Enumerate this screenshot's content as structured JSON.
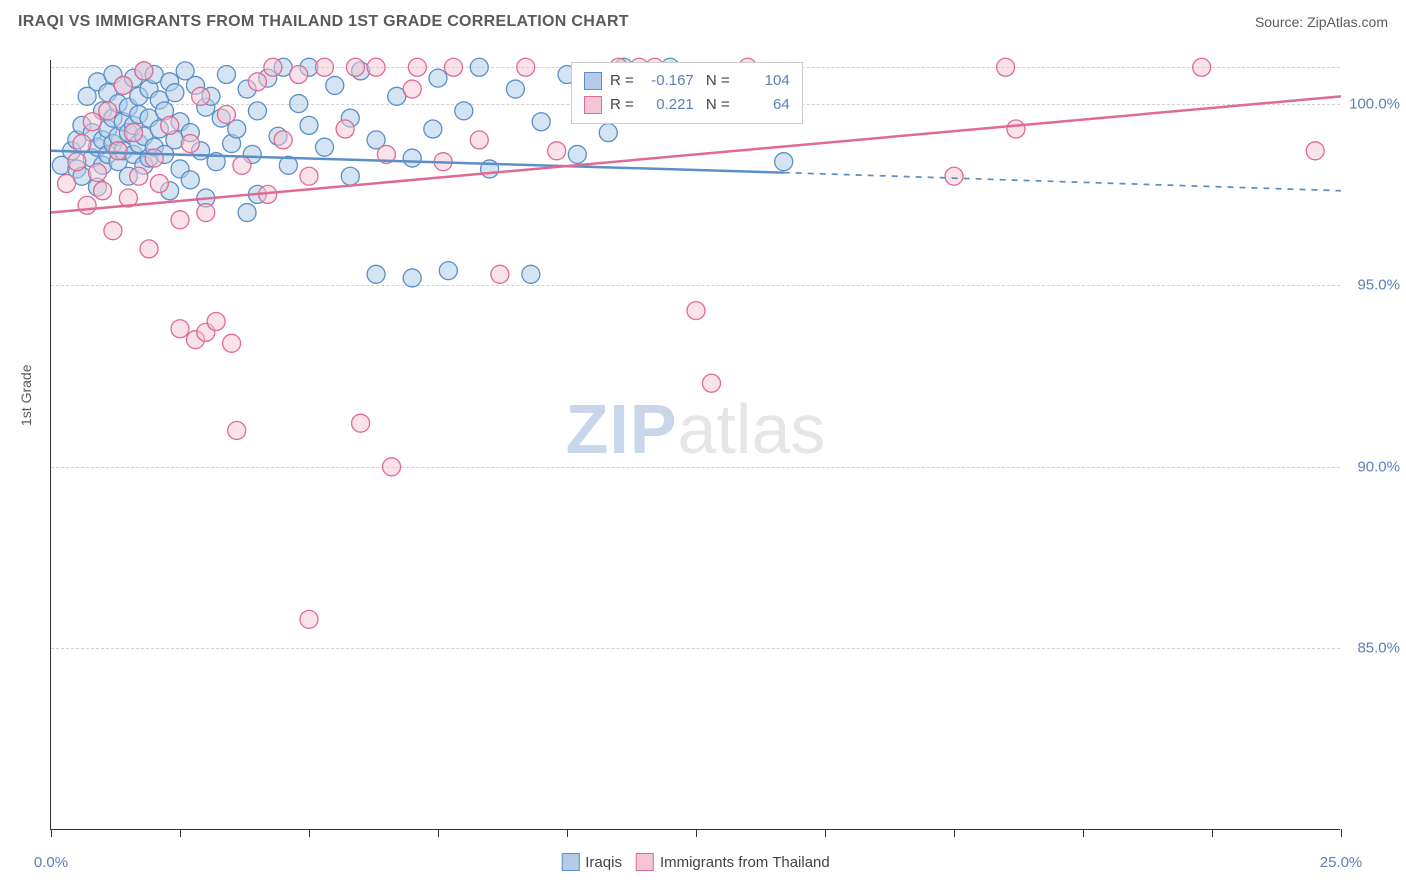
{
  "header": {
    "title": "IRAQI VS IMMIGRANTS FROM THAILAND 1ST GRADE CORRELATION CHART",
    "source_label": "Source:",
    "source_name": "ZipAtlas.com"
  },
  "y_axis_label": "1st Grade",
  "watermark": {
    "part1": "ZIP",
    "part2": "atlas"
  },
  "chart": {
    "type": "scatter",
    "xlim": [
      0,
      25
    ],
    "ylim": [
      80,
      101.2
    ],
    "xtick_positions": [
      0,
      2.5,
      5,
      7.5,
      10,
      12.5,
      15,
      17.5,
      20,
      22.5,
      25
    ],
    "xtick_labels": {
      "0": "0.0%",
      "25": "25.0%"
    },
    "ytick_positions": [
      85,
      90,
      95,
      100
    ],
    "ytick_labels": {
      "85": "85.0%",
      "90": "90.0%",
      "95": "95.0%",
      "100": "100.0%"
    },
    "grid_color": "#d0d0d0",
    "background_color": "#ffffff",
    "marker_radius": 9,
    "marker_stroke_width": 1.3,
    "line_width": 2.5,
    "series": [
      {
        "name": "Iraqis",
        "fill": "#b3cde8",
        "stroke": "#5b8fc7",
        "fill_opacity": 0.55,
        "R": "-0.167",
        "N": "104",
        "trend": {
          "solid_from": [
            0,
            98.7
          ],
          "solid_to": [
            14.2,
            98.1
          ],
          "dash_to": [
            25,
            97.6
          ]
        },
        "points": [
          [
            0.2,
            98.3
          ],
          [
            0.4,
            98.7
          ],
          [
            0.5,
            99.0
          ],
          [
            0.5,
            98.2
          ],
          [
            0.6,
            99.4
          ],
          [
            0.6,
            98.0
          ],
          [
            0.7,
            100.2
          ],
          [
            0.8,
            99.2
          ],
          [
            0.8,
            98.5
          ],
          [
            0.9,
            100.6
          ],
          [
            0.9,
            98.8
          ],
          [
            0.9,
            97.7
          ],
          [
            1.0,
            99.8
          ],
          [
            1.0,
            99.0
          ],
          [
            1.0,
            98.3
          ],
          [
            1.1,
            100.3
          ],
          [
            1.1,
            99.3
          ],
          [
            1.1,
            98.6
          ],
          [
            1.2,
            100.8
          ],
          [
            1.2,
            99.6
          ],
          [
            1.2,
            98.9
          ],
          [
            1.3,
            100.0
          ],
          [
            1.3,
            99.1
          ],
          [
            1.3,
            98.4
          ],
          [
            1.4,
            100.5
          ],
          [
            1.4,
            99.5
          ],
          [
            1.4,
            98.7
          ],
          [
            1.5,
            99.9
          ],
          [
            1.5,
            99.2
          ],
          [
            1.5,
            98.0
          ],
          [
            1.6,
            100.7
          ],
          [
            1.6,
            99.4
          ],
          [
            1.6,
            98.6
          ],
          [
            1.7,
            100.2
          ],
          [
            1.7,
            99.7
          ],
          [
            1.7,
            98.9
          ],
          [
            1.8,
            100.9
          ],
          [
            1.8,
            99.1
          ],
          [
            1.8,
            98.3
          ],
          [
            1.9,
            98.5
          ],
          [
            1.9,
            100.4
          ],
          [
            1.9,
            99.6
          ],
          [
            2.0,
            100.8
          ],
          [
            2.0,
            98.8
          ],
          [
            2.1,
            99.3
          ],
          [
            2.1,
            100.1
          ],
          [
            2.2,
            98.6
          ],
          [
            2.2,
            99.8
          ],
          [
            2.3,
            100.6
          ],
          [
            2.3,
            97.6
          ],
          [
            2.4,
            99.0
          ],
          [
            2.4,
            100.3
          ],
          [
            2.5,
            98.2
          ],
          [
            2.5,
            99.5
          ],
          [
            2.6,
            100.9
          ],
          [
            2.7,
            99.2
          ],
          [
            2.7,
            97.9
          ],
          [
            2.8,
            100.5
          ],
          [
            2.9,
            98.7
          ],
          [
            3.0,
            99.9
          ],
          [
            3.0,
            97.4
          ],
          [
            3.1,
            100.2
          ],
          [
            3.2,
            98.4
          ],
          [
            3.3,
            99.6
          ],
          [
            3.4,
            100.8
          ],
          [
            3.5,
            98.9
          ],
          [
            3.6,
            99.3
          ],
          [
            3.8,
            100.4
          ],
          [
            3.8,
            97.0
          ],
          [
            3.9,
            98.6
          ],
          [
            4.0,
            99.8
          ],
          [
            4.0,
            97.5
          ],
          [
            4.2,
            100.7
          ],
          [
            4.4,
            99.1
          ],
          [
            4.6,
            98.3
          ],
          [
            4.8,
            100.0
          ],
          [
            5.0,
            99.4
          ],
          [
            5.0,
            101.0
          ],
          [
            5.3,
            98.8
          ],
          [
            5.5,
            100.5
          ],
          [
            5.8,
            99.6
          ],
          [
            5.8,
            98.0
          ],
          [
            6.0,
            100.9
          ],
          [
            6.3,
            99.0
          ],
          [
            6.3,
            95.3
          ],
          [
            6.7,
            100.2
          ],
          [
            7.0,
            98.5
          ],
          [
            7.0,
            95.2
          ],
          [
            7.4,
            99.3
          ],
          [
            7.5,
            100.7
          ],
          [
            7.7,
            95.4
          ],
          [
            8.0,
            99.8
          ],
          [
            8.3,
            101.0
          ],
          [
            8.5,
            98.2
          ],
          [
            9.0,
            100.4
          ],
          [
            9.5,
            99.5
          ],
          [
            10.0,
            100.8
          ],
          [
            10.2,
            98.6
          ],
          [
            10.8,
            99.2
          ],
          [
            14.2,
            98.4
          ],
          [
            11.1,
            101.0
          ],
          [
            12.0,
            101.0
          ],
          [
            9.3,
            95.3
          ],
          [
            4.5,
            101.0
          ]
        ]
      },
      {
        "name": "Immigants from Thailand",
        "label": "Immigrants from Thailand",
        "fill": "#f4c6d4",
        "stroke": "#e06a94",
        "fill_opacity": 0.5,
        "R": "0.221",
        "N": "64",
        "trend": {
          "solid_from": [
            0,
            97.0
          ],
          "solid_to": [
            25,
            100.2
          ]
        },
        "points": [
          [
            0.3,
            97.8
          ],
          [
            0.5,
            98.4
          ],
          [
            0.6,
            98.9
          ],
          [
            0.7,
            97.2
          ],
          [
            0.8,
            99.5
          ],
          [
            0.9,
            98.1
          ],
          [
            1.0,
            97.6
          ],
          [
            1.1,
            99.8
          ],
          [
            1.2,
            96.5
          ],
          [
            1.3,
            98.7
          ],
          [
            1.4,
            100.5
          ],
          [
            1.5,
            97.4
          ],
          [
            1.6,
            99.2
          ],
          [
            1.7,
            98.0
          ],
          [
            1.8,
            100.9
          ],
          [
            1.9,
            96.0
          ],
          [
            2.0,
            98.5
          ],
          [
            2.1,
            97.8
          ],
          [
            2.3,
            99.4
          ],
          [
            2.5,
            96.8
          ],
          [
            2.5,
            93.8
          ],
          [
            2.7,
            98.9
          ],
          [
            2.8,
            93.5
          ],
          [
            2.9,
            100.2
          ],
          [
            3.0,
            97.0
          ],
          [
            3.0,
            93.7
          ],
          [
            3.2,
            94.0
          ],
          [
            3.4,
            99.7
          ],
          [
            3.5,
            93.4
          ],
          [
            3.6,
            91.0
          ],
          [
            3.7,
            98.3
          ],
          [
            4.0,
            100.6
          ],
          [
            4.2,
            97.5
          ],
          [
            4.3,
            101.0
          ],
          [
            4.5,
            99.0
          ],
          [
            4.8,
            100.8
          ],
          [
            5.0,
            98.0
          ],
          [
            5.0,
            85.8
          ],
          [
            5.3,
            101.0
          ],
          [
            5.7,
            99.3
          ],
          [
            5.9,
            101.0
          ],
          [
            6.0,
            91.2
          ],
          [
            6.3,
            101.0
          ],
          [
            6.5,
            98.6
          ],
          [
            6.6,
            90.0
          ],
          [
            7.0,
            100.4
          ],
          [
            7.1,
            101.0
          ],
          [
            7.6,
            98.4
          ],
          [
            7.8,
            101.0
          ],
          [
            8.3,
            99.0
          ],
          [
            8.7,
            95.3
          ],
          [
            9.2,
            101.0
          ],
          [
            9.8,
            98.7
          ],
          [
            11.0,
            101.0
          ],
          [
            11.4,
            101.0
          ],
          [
            11.7,
            101.0
          ],
          [
            12.5,
            94.3
          ],
          [
            12.8,
            92.3
          ],
          [
            13.5,
            101.0
          ],
          [
            17.5,
            98.0
          ],
          [
            18.5,
            101.0
          ],
          [
            18.7,
            99.3
          ],
          [
            22.3,
            101.0
          ],
          [
            24.5,
            98.7
          ]
        ]
      }
    ]
  },
  "legend_bottom": {
    "items": [
      {
        "label": "Iraqis",
        "fill": "#b3cde8",
        "stroke": "#5b8fc7"
      },
      {
        "label": "Immigrants from Thailand",
        "fill": "#f4c6d4",
        "stroke": "#e06a94"
      }
    ]
  }
}
